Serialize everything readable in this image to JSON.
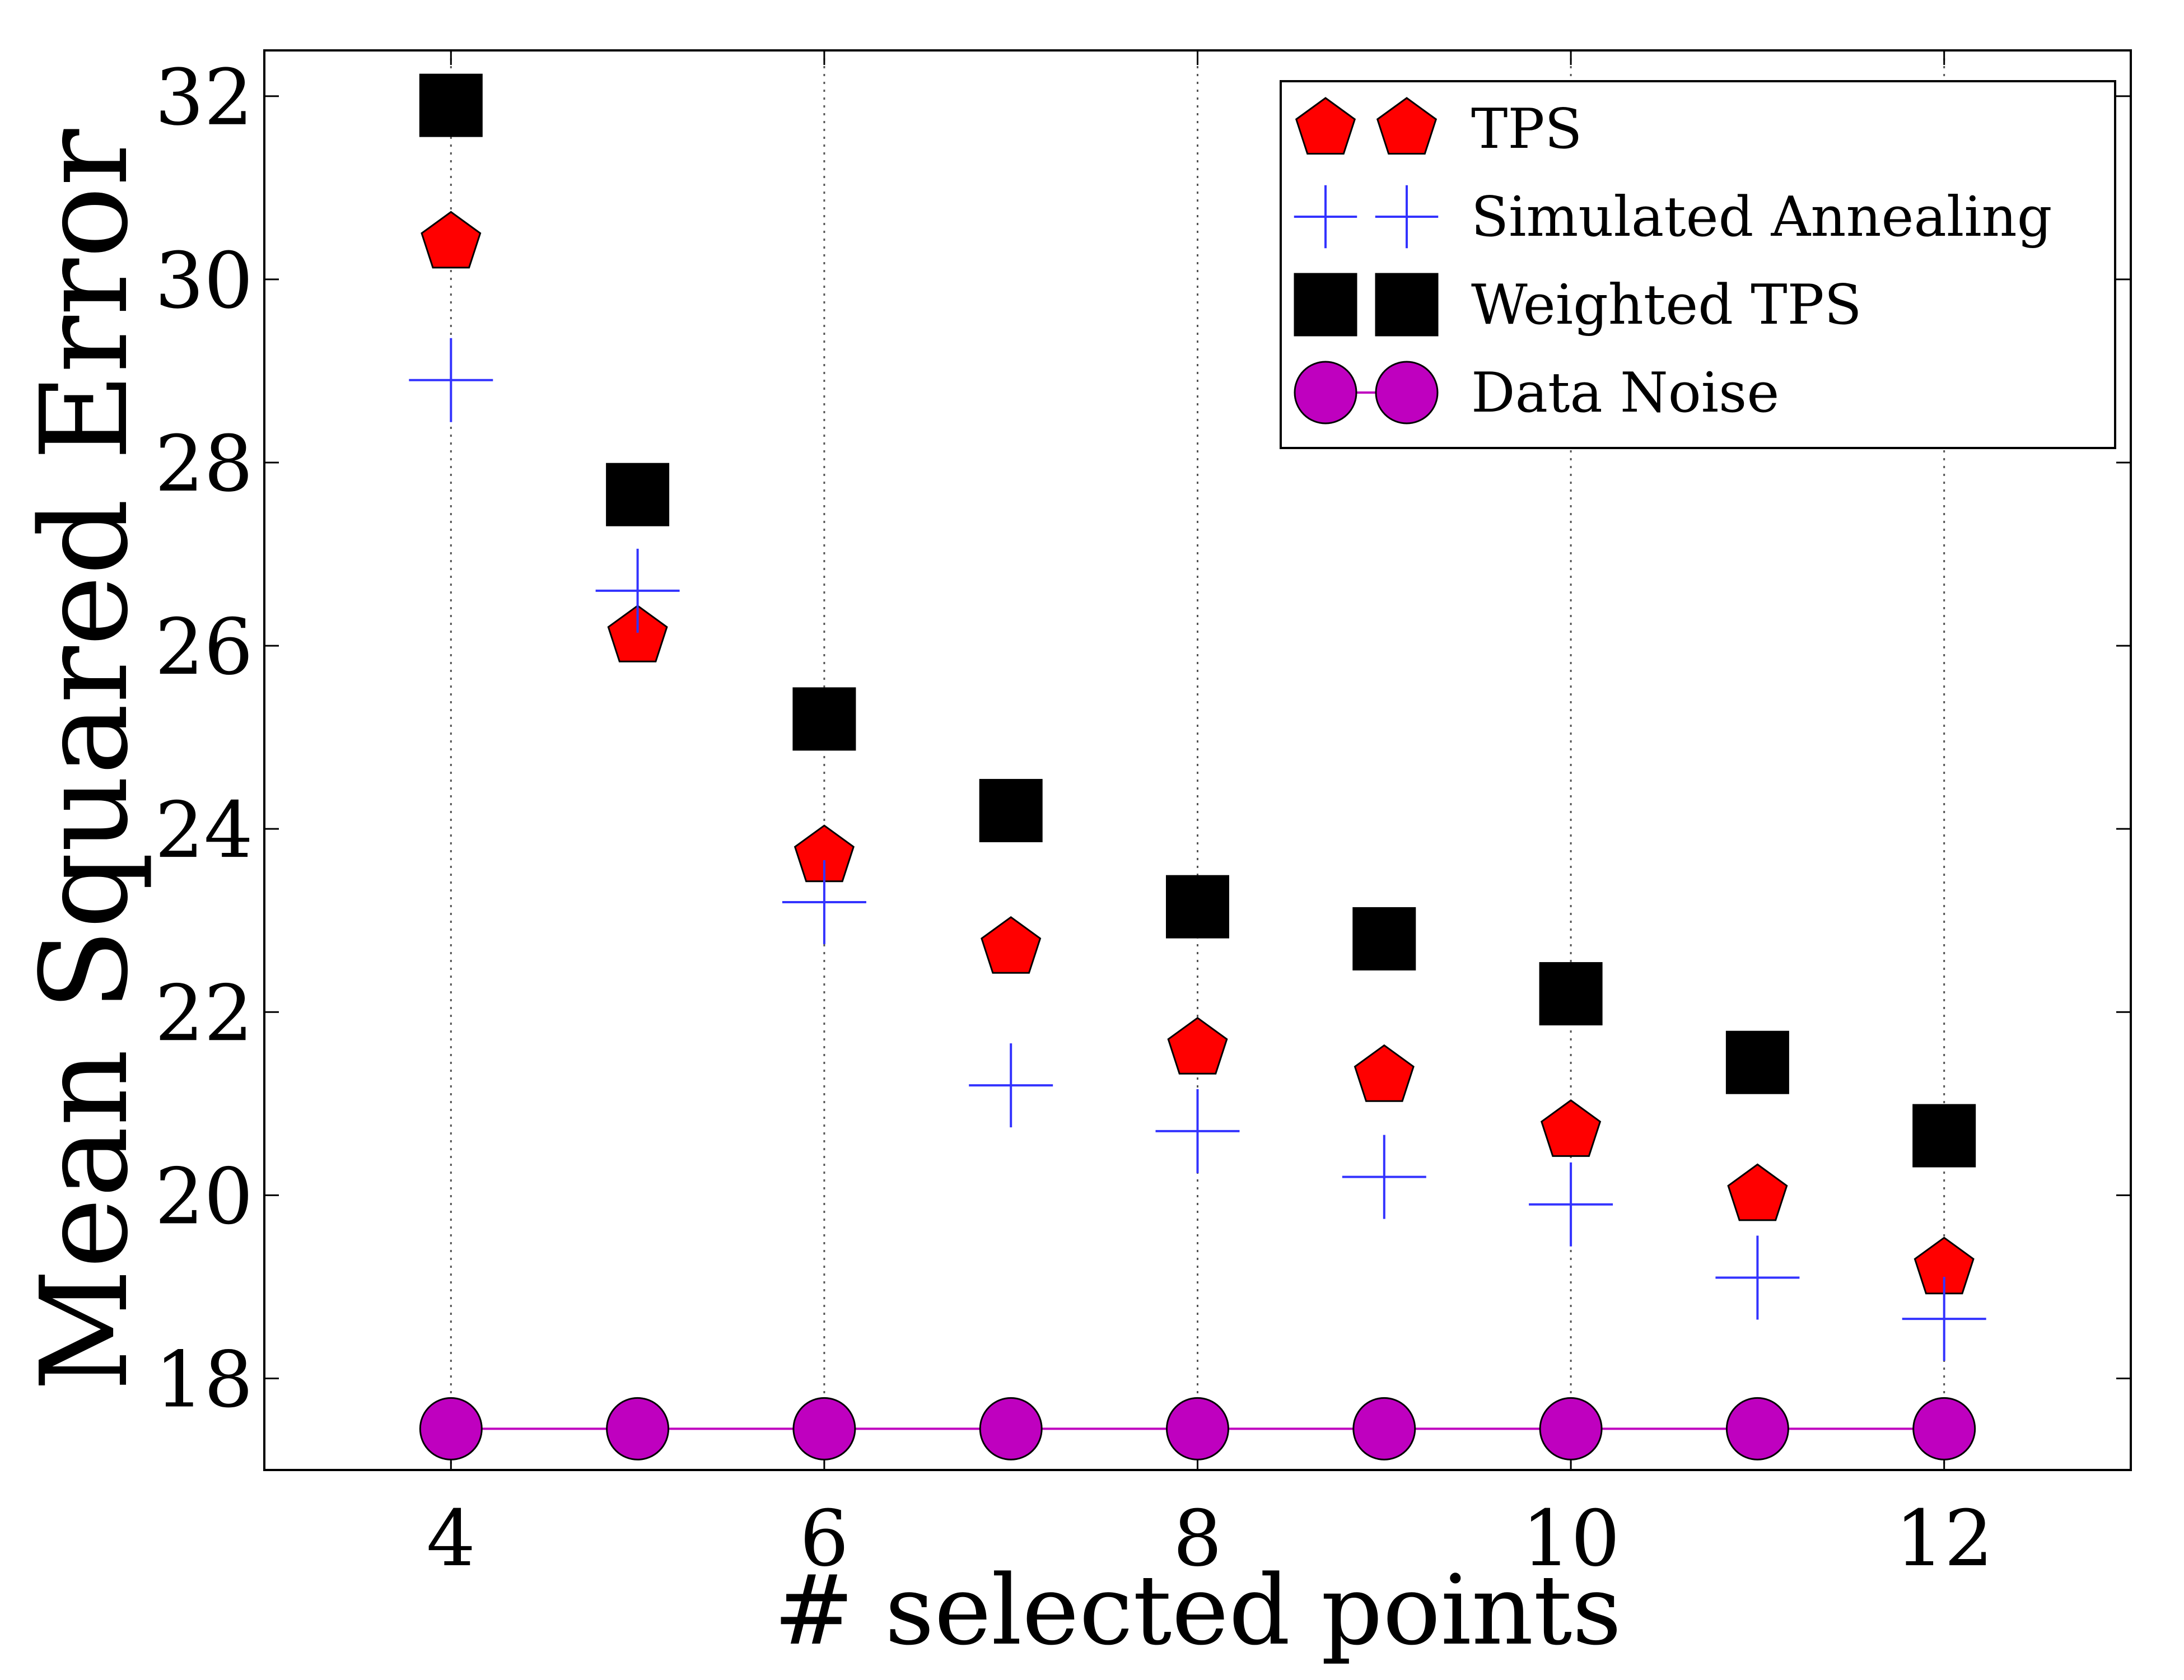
{
  "chart_data": {
    "type": "scatter",
    "xlabel": "# selected points",
    "ylabel": "Mean Squared Error",
    "xlim": [
      3,
      13
    ],
    "ylim": [
      17,
      32.5
    ],
    "xticks": [
      4,
      6,
      8,
      10,
      12
    ],
    "yticks": [
      18,
      20,
      22,
      24,
      26,
      28,
      30,
      32
    ],
    "grid": "vertical dotted at x ticks",
    "legend_position": "top-right",
    "x": [
      4,
      5,
      6,
      7,
      8,
      9,
      10,
      11,
      12
    ],
    "series": [
      {
        "name": "TPS",
        "marker": "pentagon",
        "color": "#ff0000",
        "line": false,
        "values": [
          30.4,
          26.1,
          23.7,
          22.7,
          21.6,
          21.3,
          20.7,
          20.0,
          19.2
        ]
      },
      {
        "name": "Simulated Annealing",
        "marker": "plus",
        "color": "#3333ff",
        "line": false,
        "values": [
          28.9,
          26.6,
          23.2,
          21.2,
          20.7,
          20.2,
          19.9,
          19.1,
          18.65
        ]
      },
      {
        "name": "Weighted TPS",
        "marker": "square",
        "color": "#000000",
        "line": false,
        "values": [
          31.9,
          27.65,
          25.2,
          24.2,
          23.15,
          22.8,
          22.2,
          21.45,
          20.65
        ]
      },
      {
        "name": "Data Noise",
        "marker": "circle",
        "color": "#bf00bf",
        "line": true,
        "values": [
          17.45,
          17.45,
          17.45,
          17.45,
          17.45,
          17.45,
          17.45,
          17.45,
          17.45
        ]
      }
    ]
  }
}
